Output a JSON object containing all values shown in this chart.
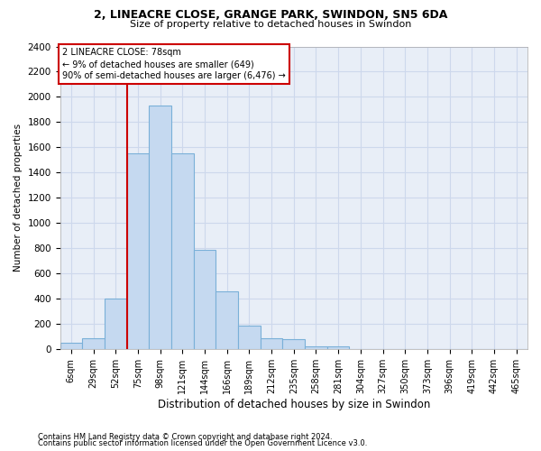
{
  "title1": "2, LINEACRE CLOSE, GRANGE PARK, SWINDON, SN5 6DA",
  "title2": "Size of property relative to detached houses in Swindon",
  "xlabel": "Distribution of detached houses by size in Swindon",
  "ylabel": "Number of detached properties",
  "footer1": "Contains HM Land Registry data © Crown copyright and database right 2024.",
  "footer2": "Contains public sector information licensed under the Open Government Licence v3.0.",
  "annotation_line1": "2 LINEACRE CLOSE: 78sqm",
  "annotation_line2": "← 9% of detached houses are smaller (649)",
  "annotation_line3": "90% of semi-detached houses are larger (6,476) →",
  "bar_labels": [
    "6sqm",
    "29sqm",
    "52sqm",
    "75sqm",
    "98sqm",
    "121sqm",
    "144sqm",
    "166sqm",
    "189sqm",
    "212sqm",
    "235sqm",
    "258sqm",
    "281sqm",
    "304sqm",
    "327sqm",
    "350sqm",
    "373sqm",
    "396sqm",
    "419sqm",
    "442sqm",
    "465sqm"
  ],
  "bar_values": [
    50,
    90,
    400,
    1550,
    1930,
    1550,
    790,
    460,
    190,
    90,
    80,
    25,
    25,
    5,
    0,
    0,
    0,
    0,
    0,
    0,
    0
  ],
  "bar_color": "#c5d9f0",
  "bar_edge_color": "#7ab0d8",
  "ylim": [
    0,
    2400
  ],
  "yticks": [
    0,
    200,
    400,
    600,
    800,
    1000,
    1200,
    1400,
    1600,
    1800,
    2000,
    2200,
    2400
  ],
  "vline_color": "#cc0000",
  "vline_x_index": 3,
  "annotation_box_edge_color": "#cc0000",
  "grid_color": "#cdd8ec",
  "bg_color": "#e8eef7"
}
